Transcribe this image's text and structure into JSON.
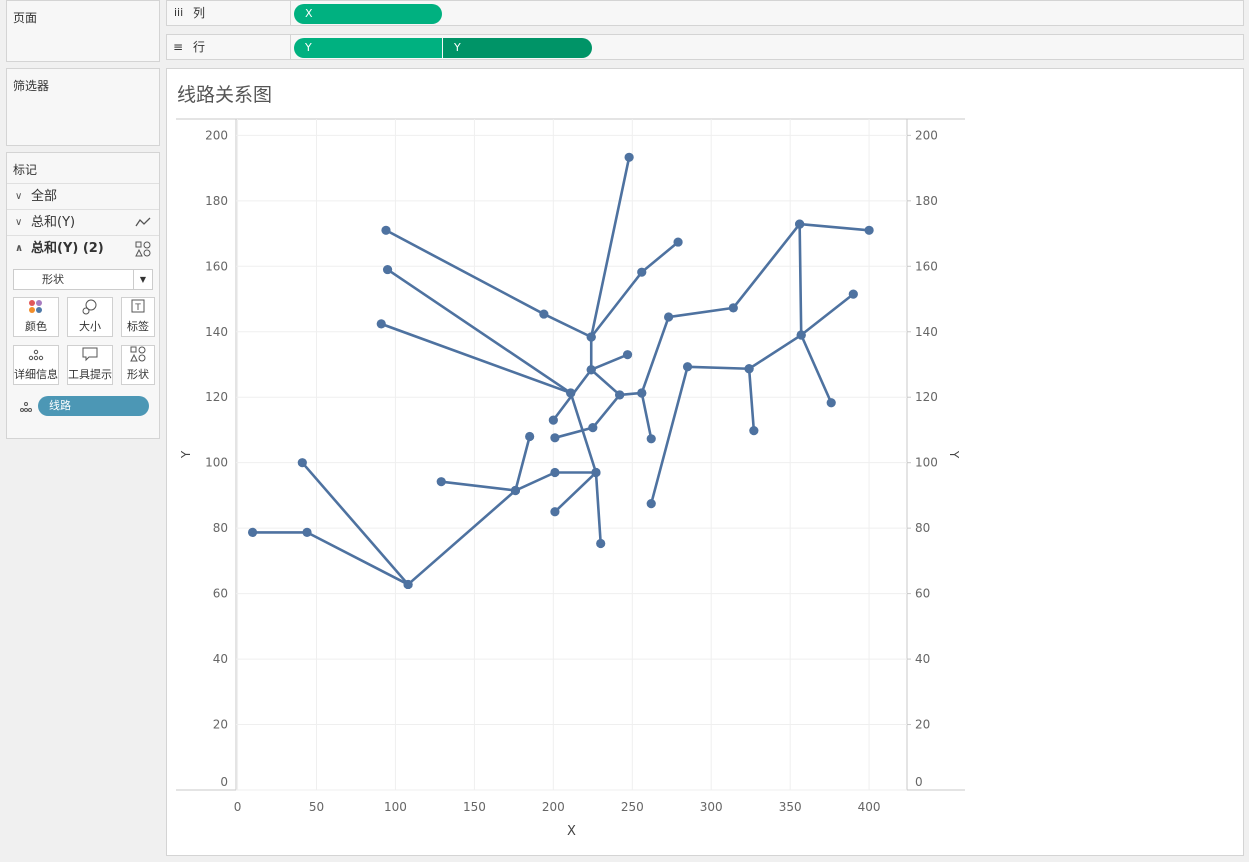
{
  "ui": {
    "pages": "页面",
    "filters": "筛选器",
    "marks_title": "标记",
    "marks_all": "全部",
    "marks_line": "总和(Y)",
    "marks_shape": "总和(Y) (2)",
    "mark_type": "形状",
    "buttons": [
      "颜色",
      "大小",
      "标签",
      "详细信息",
      "工具提示",
      "形状"
    ],
    "detail_pill": "线路",
    "columns_label": "列",
    "columns_pills": [
      "X"
    ],
    "rows_label": "行",
    "rows_pills": [
      "Y",
      "Y"
    ]
  },
  "chart_data": {
    "type": "line",
    "title": "线路关系图",
    "x_label": "X",
    "y_label": "Y",
    "y2_label": "Y",
    "color": "#4e72a0",
    "markers": true,
    "grid": true,
    "xlim": [
      -1,
      424
    ],
    "xticks": [
      0,
      50,
      100,
      150,
      200,
      250,
      300,
      350,
      400
    ],
    "ylim": [
      0,
      205
    ],
    "yticks": [
      0,
      20,
      40,
      60,
      80,
      100,
      120,
      140,
      160,
      180,
      200
    ],
    "y2lim": [
      0,
      205
    ],
    "y2ticks": [
      0,
      20,
      40,
      60,
      80,
      100,
      120,
      140,
      160,
      180,
      200
    ],
    "series": [
      {
        "x": [
          9.5,
          44,
          108,
          176,
          185
        ],
        "y": [
          78.7,
          78.7,
          62.8,
          91.5,
          108
        ]
      },
      {
        "x": [
          41,
          108
        ],
        "y": [
          100,
          62.8
        ]
      },
      {
        "x": [
          129,
          176,
          201,
          227,
          230
        ],
        "y": [
          94.2,
          91.5,
          97,
          97,
          75.3
        ]
      },
      {
        "x": [
          201,
          227,
          211,
          95
        ],
        "y": [
          85,
          97,
          121.3,
          159
        ]
      },
      {
        "x": [
          91,
          211
        ],
        "y": [
          142.4,
          121.3
        ]
      },
      {
        "x": [
          201,
          225,
          242,
          224,
          224,
          248
        ],
        "y": [
          107.6,
          110.7,
          120.7,
          128.4,
          138.4,
          193.3
        ]
      },
      {
        "x": [
          247,
          224,
          200
        ],
        "y": [
          133,
          128.4,
          113
        ]
      },
      {
        "x": [
          94,
          194,
          224,
          256,
          279
        ],
        "y": [
          171,
          145.4,
          138.4,
          158.2,
          167.4
        ]
      },
      {
        "x": [
          242,
          256,
          262
        ],
        "y": [
          120.7,
          121.3,
          107.3
        ]
      },
      {
        "x": [
          256,
          273,
          314,
          356,
          400
        ],
        "y": [
          121.3,
          144.5,
          147.3,
          172.9,
          171
        ]
      },
      {
        "x": [
          356,
          357,
          376
        ],
        "y": [
          172.9,
          139,
          118.3
        ]
      },
      {
        "x": [
          390,
          357,
          324,
          327
        ],
        "y": [
          151.5,
          139,
          128.7,
          109.8
        ]
      },
      {
        "x": [
          324,
          285,
          262
        ],
        "y": [
          128.7,
          129.3,
          87.5
        ]
      }
    ]
  }
}
